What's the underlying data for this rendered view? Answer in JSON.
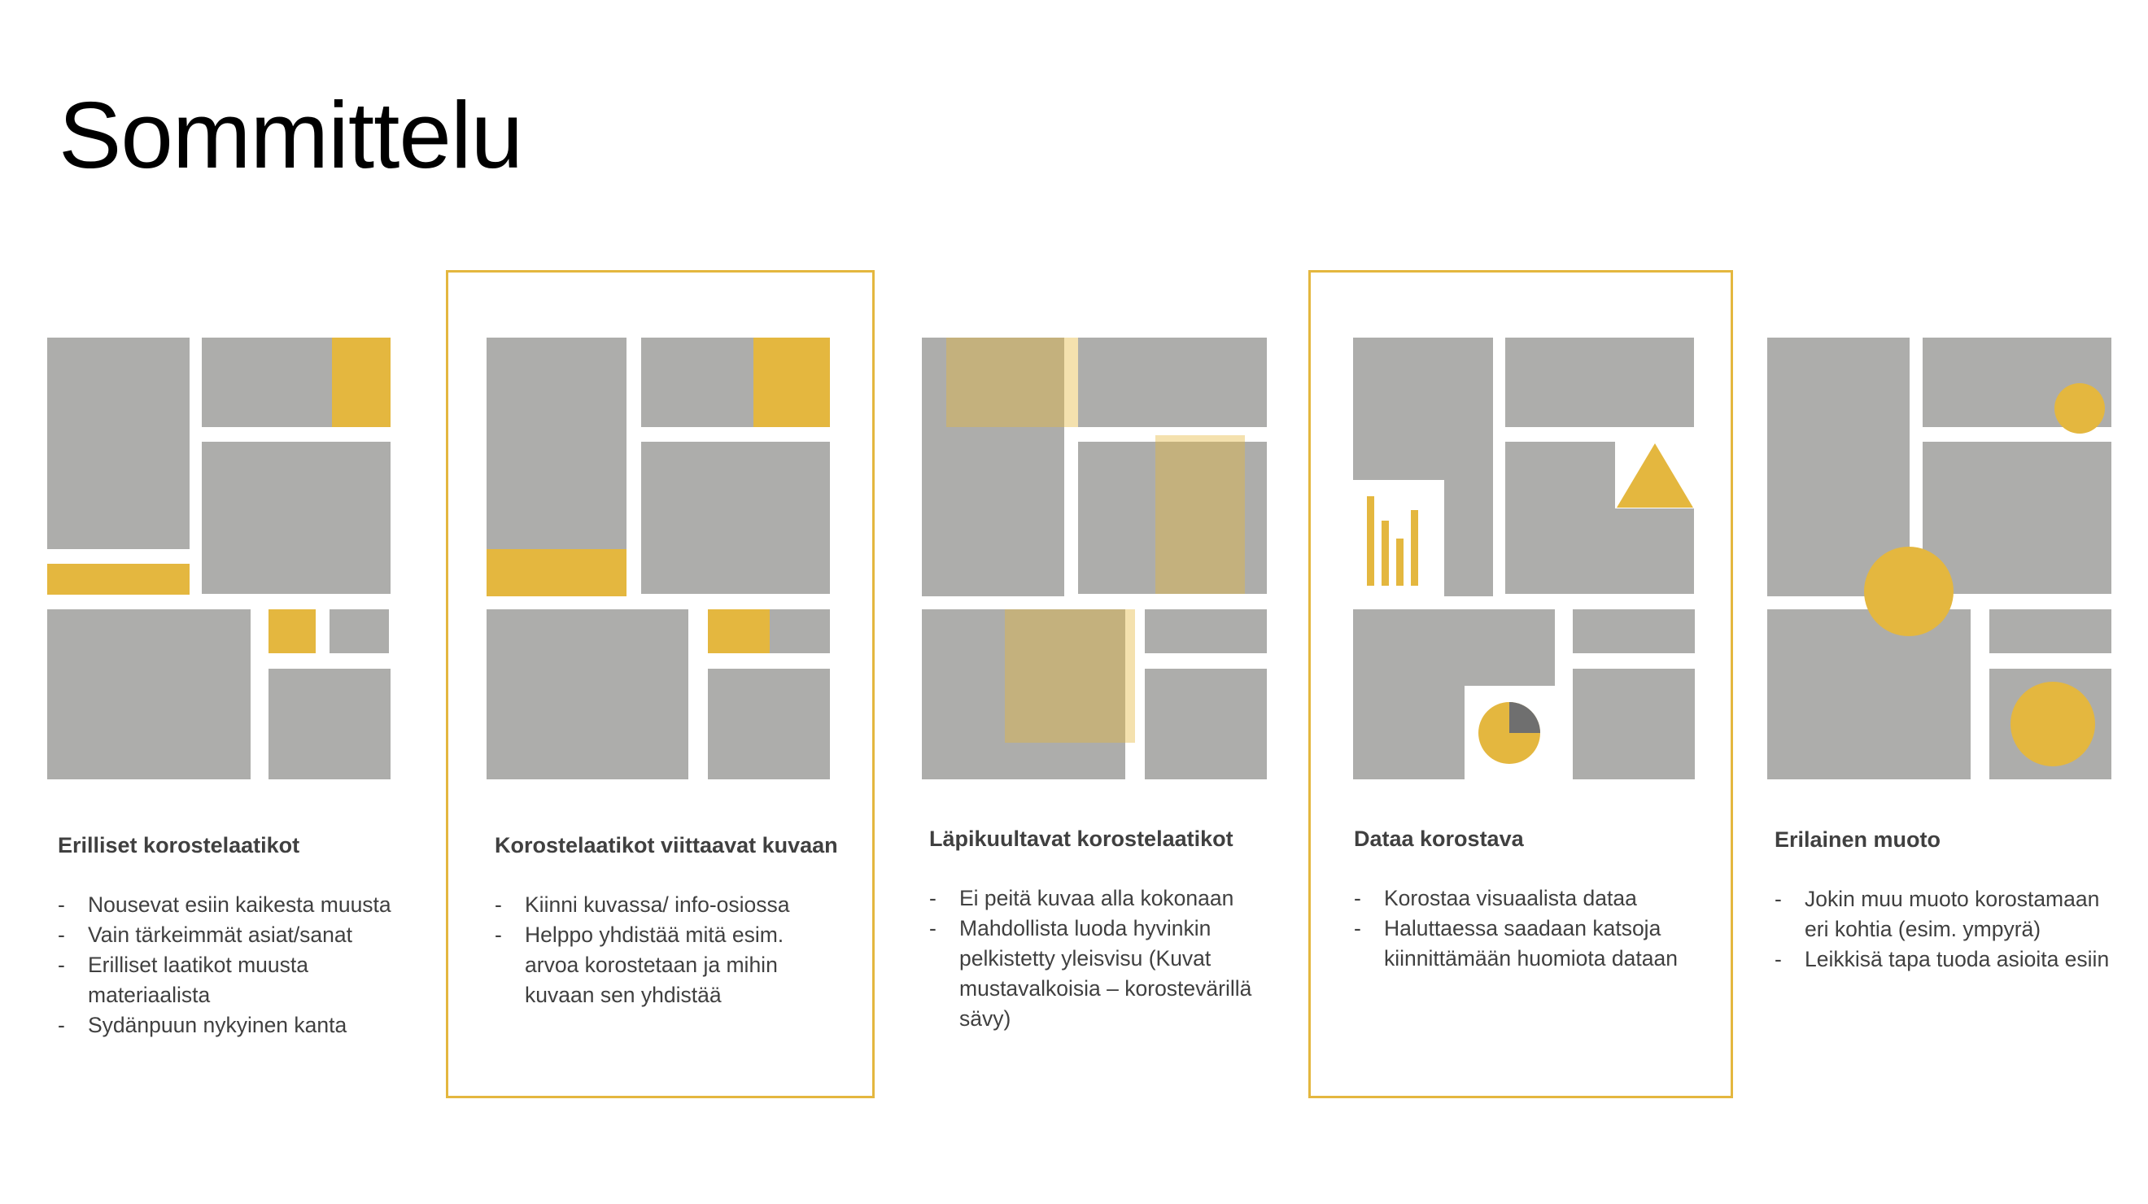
{
  "page": {
    "title": "Sommittelu"
  },
  "colors": {
    "box": "#adadab",
    "accent": "#e4b73f",
    "dark": "#6f6f6f",
    "text": "#404040"
  },
  "columns": [
    {
      "heading": "Erilliset korostelaatikot",
      "items": [
        "Nousevat esiin kaikesta muusta",
        "Vain tärkeimmät asiat/sanat",
        "Erilliset laatikot muusta materiaalista",
        "Sydänpuun nykyinen kanta"
      ]
    },
    {
      "heading": "Korostelaatikot viittaavat kuvaan",
      "items": [
        "Kiinni kuvassa/ info-osiossa",
        "Helppo yhdistää mitä esim. arvoa korostetaan ja mihin kuvaan sen yhdistää"
      ]
    },
    {
      "heading": "Läpikuultavat korostelaatikot",
      "items": [
        "Ei peitä kuvaa alla kokonaan",
        "Mahdollista luoda hyvinkin pelkistetty yleisvisu (Kuvat mustavalkoisia – korostevärillä sävy)"
      ]
    },
    {
      "heading": "Dataa korostava",
      "items": [
        "Korostaa visuaalista dataa",
        "Haluttaessa saadaan katsoja kiinnittämään huomiota dataan"
      ]
    },
    {
      "heading": "Erilainen muoto",
      "items": [
        "Jokin muu muoto korostamaan eri kohtia (esim. ympyrä)",
        "Leikkisä tapa tuoda asioita esiin"
      ]
    }
  ]
}
